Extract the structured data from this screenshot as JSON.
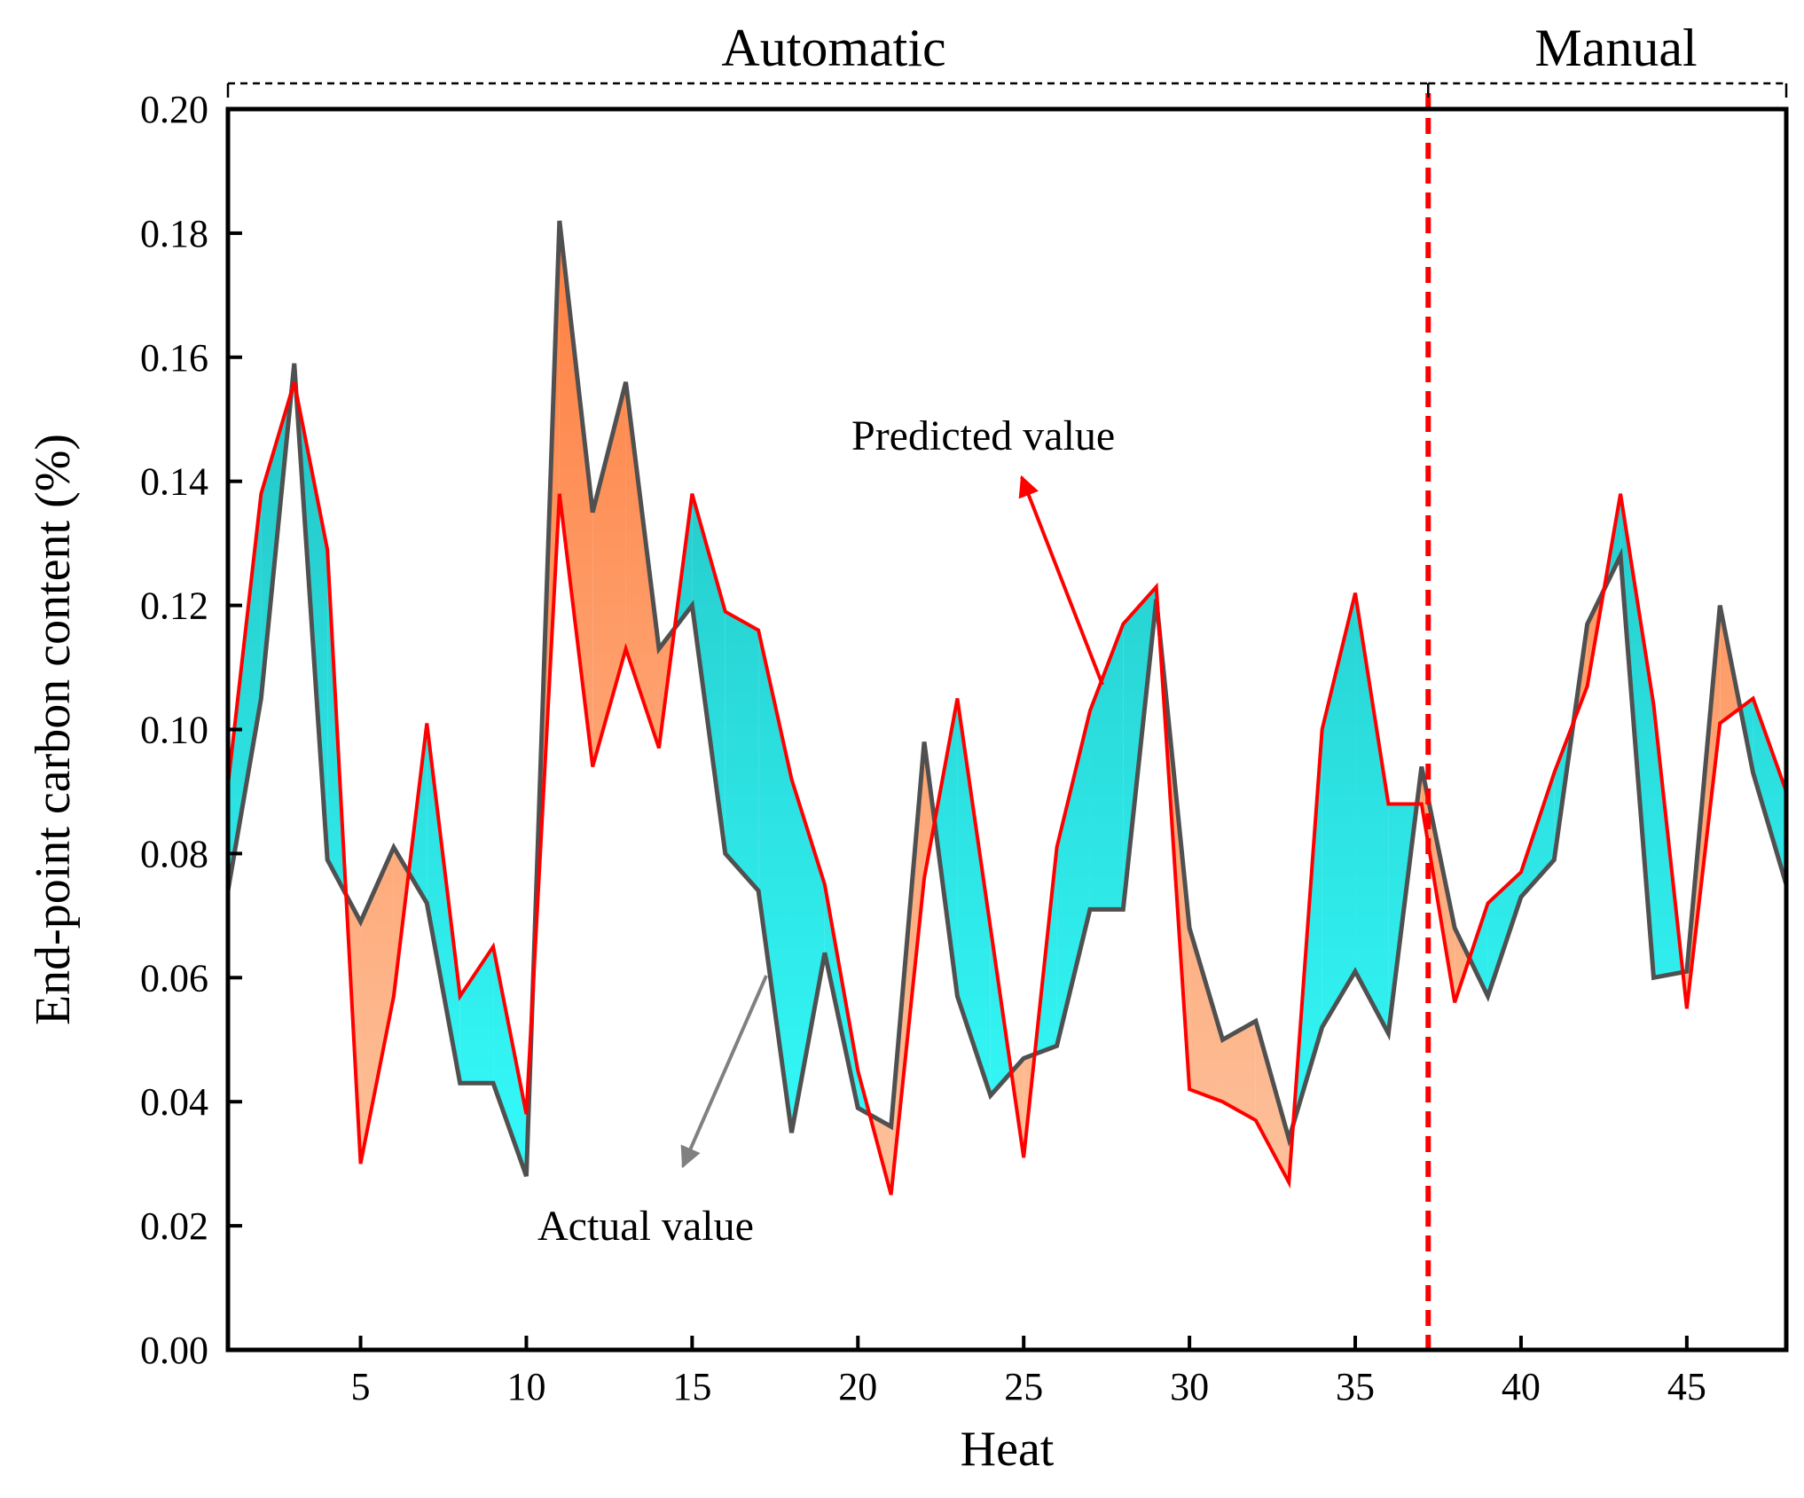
{
  "chart_data": {
    "type": "line",
    "xlabel": "Heat",
    "ylabel": "End-point carbon content (%)",
    "xlim": [
      1,
      48
    ],
    "ylim": [
      0.0,
      0.2
    ],
    "x_ticks": [
      5,
      10,
      15,
      20,
      25,
      30,
      35,
      40,
      45
    ],
    "y_ticks": [
      "0.00",
      "0.02",
      "0.04",
      "0.06",
      "0.08",
      "0.10",
      "0.12",
      "0.14",
      "0.16",
      "0.18",
      "0.20"
    ],
    "sections": [
      {
        "label": "Automatic",
        "from": 1,
        "to": 37.2
      },
      {
        "label": "Manual",
        "from": 37.2,
        "to": 48
      }
    ],
    "divider_x": 37.2,
    "x": [
      1,
      2,
      3,
      4,
      5,
      6,
      7,
      8,
      9,
      10,
      11,
      12,
      13,
      14,
      15,
      16,
      17,
      18,
      19,
      20,
      21,
      22,
      23,
      24,
      25,
      26,
      27,
      28,
      29,
      30,
      31,
      32,
      33,
      34,
      35,
      36,
      37,
      38,
      39,
      40,
      41,
      42,
      43,
      44,
      45,
      46,
      47,
      48
    ],
    "series": [
      {
        "name": "Actual value",
        "color": "#505050",
        "values": [
          0.074,
          0.105,
          0.159,
          0.079,
          0.069,
          0.081,
          0.072,
          0.043,
          0.043,
          0.028,
          0.182,
          0.135,
          0.156,
          0.113,
          0.12,
          0.08,
          0.074,
          0.035,
          0.064,
          0.039,
          0.036,
          0.098,
          0.057,
          0.041,
          0.047,
          0.049,
          0.071,
          0.071,
          0.121,
          0.068,
          0.05,
          0.053,
          0.034,
          0.052,
          0.061,
          0.051,
          0.094,
          0.068,
          0.057,
          0.073,
          0.079,
          0.117,
          0.128,
          0.06,
          0.061,
          0.12,
          0.093,
          0.075
        ]
      },
      {
        "name": "Predicted value",
        "color": "#ff0000",
        "values": [
          0.091,
          0.138,
          0.156,
          0.129,
          0.03,
          0.057,
          0.101,
          0.057,
          0.065,
          0.038,
          0.138,
          0.094,
          0.113,
          0.097,
          0.138,
          0.119,
          0.116,
          0.092,
          0.075,
          0.045,
          0.025,
          0.076,
          0.105,
          0.068,
          0.031,
          0.081,
          0.103,
          0.117,
          0.123,
          0.042,
          0.04,
          0.037,
          0.027,
          0.1,
          0.122,
          0.088,
          0.088,
          0.056,
          0.072,
          0.077,
          0.093,
          0.107,
          0.138,
          0.104,
          0.055,
          0.101,
          0.105,
          0.09
        ]
      }
    ],
    "fill_colors": {
      "predicted_higher_top": "#1fb5b5",
      "predicted_higher_bottom": "#33f6f6",
      "actual_higher_top": "#ff7f40",
      "actual_higher_bottom": "#fdbf98"
    },
    "annotations": [
      {
        "text": "Predicted value",
        "points_to": "Predicted value"
      },
      {
        "text": "Actual value",
        "points_to": "Actual value"
      }
    ]
  }
}
